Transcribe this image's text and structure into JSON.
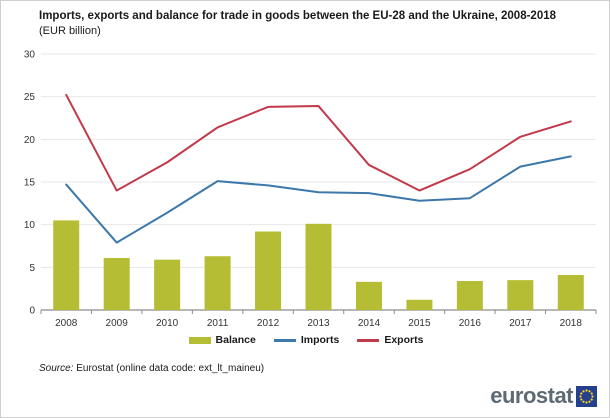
{
  "header": {
    "title": "Imports, exports and balance for trade in goods between the EU-28 and the Ukraine, 2008-2018",
    "subtitle": "(EUR billion)"
  },
  "chart_data": {
    "type": "bar",
    "subtype": "combo-bar-line",
    "title": "Imports, exports and balance for trade in goods between the EU-28 and the Ukraine, 2008-2018",
    "units": "EUR billion",
    "categories": [
      "2008",
      "2009",
      "2010",
      "2011",
      "2012",
      "2013",
      "2014",
      "2015",
      "2016",
      "2017",
      "2018"
    ],
    "series": [
      {
        "name": "Balance",
        "type": "bar",
        "color": "#b4bd33",
        "values": [
          10.5,
          6.1,
          5.9,
          6.3,
          9.2,
          10.1,
          3.3,
          1.2,
          3.4,
          3.5,
          4.1
        ]
      },
      {
        "name": "Imports",
        "type": "line",
        "color": "#3c78aa",
        "values": [
          14.7,
          7.9,
          11.4,
          15.1,
          14.6,
          13.8,
          13.7,
          12.8,
          13.1,
          16.8,
          18.0
        ]
      },
      {
        "name": "Exports",
        "type": "line",
        "color": "#c13a4a",
        "values": [
          25.2,
          14.0,
          17.3,
          21.4,
          23.8,
          23.9,
          17.0,
          14.0,
          16.5,
          20.3,
          22.1
        ]
      }
    ],
    "ylim": [
      0,
      30
    ],
    "yticks": [
      0,
      5,
      10,
      15,
      20,
      25,
      30
    ],
    "xlabel": "",
    "ylabel": "",
    "grid": true,
    "legend_position": "bottom"
  },
  "source": {
    "prefix": "Source:",
    "text": " Eurostat (online data code: ext_lt_maineu)"
  },
  "logo": {
    "text": "eurostat",
    "text_color": "#5d6a75",
    "square_color": "#24408f",
    "star_color": "#ffd617"
  }
}
